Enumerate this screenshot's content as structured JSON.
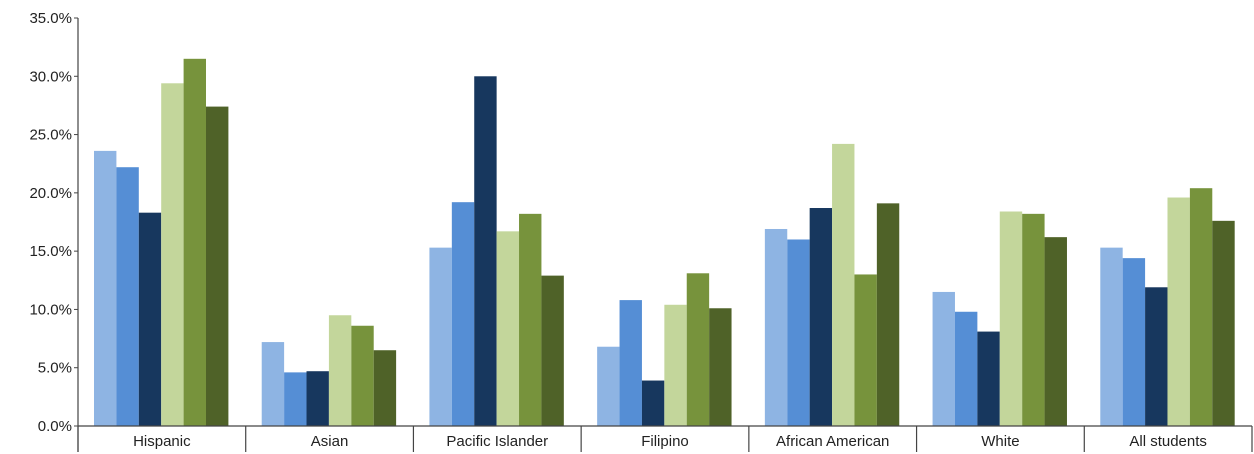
{
  "chart_data": {
    "type": "bar",
    "title": "",
    "xlabel": "",
    "ylabel": "",
    "ylim": [
      0,
      35
    ],
    "yticks": [
      "0.0%",
      "5.0%",
      "10.0%",
      "15.0%",
      "20.0%",
      "25.0%",
      "30.0%",
      "35.0%"
    ],
    "grid": false,
    "legend": "none",
    "categories": [
      "Hispanic",
      "Asian",
      "Pacific Islander",
      "Filipino",
      "African American",
      "White",
      "All students"
    ],
    "series": [
      {
        "color": "#8eb4e3",
        "values": [
          23.6,
          7.2,
          15.3,
          6.8,
          16.9,
          11.5,
          15.3
        ]
      },
      {
        "color": "#558ed5",
        "values": [
          22.2,
          4.6,
          19.2,
          10.8,
          16.0,
          9.8,
          14.4
        ]
      },
      {
        "color": "#17375e",
        "values": [
          18.3,
          4.7,
          30.0,
          3.9,
          18.7,
          8.1,
          11.9
        ]
      },
      {
        "color": "#c3d69b",
        "values": [
          29.4,
          9.5,
          16.7,
          10.4,
          24.2,
          18.4,
          19.6
        ]
      },
      {
        "color": "#77933c",
        "values": [
          31.5,
          8.6,
          18.2,
          13.1,
          13.0,
          18.2,
          20.4
        ]
      },
      {
        "color": "#4f6228",
        "values": [
          27.4,
          6.5,
          12.9,
          10.1,
          19.1,
          16.2,
          17.6
        ]
      }
    ]
  }
}
